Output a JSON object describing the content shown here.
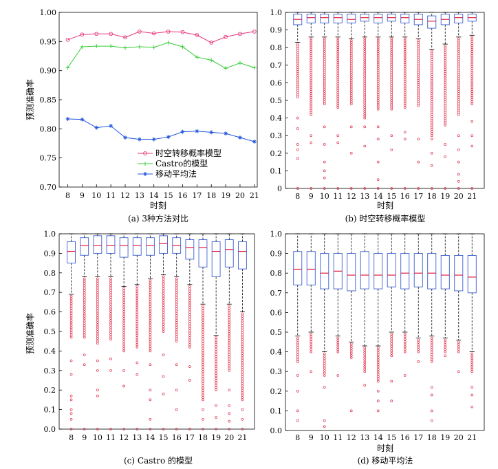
{
  "chart_data": [
    {
      "id": "a",
      "type": "line",
      "caption": "(a) 3种方法对比",
      "xlabel": "时刻",
      "ylabel": "预测准确率",
      "ylim": [
        0.7,
        1.0
      ],
      "yticks": [
        "0.70",
        "0.75",
        "0.80",
        "0.85",
        "0.90",
        "0.95",
        "1.00"
      ],
      "x": [
        8,
        9,
        10,
        11,
        12,
        13,
        14,
        15,
        16,
        17,
        18,
        19,
        20,
        21
      ],
      "x_points": [
        7.8,
        8.8,
        9.8,
        10.8,
        11.8,
        12.8,
        13.8,
        14.8,
        15.8,
        16.8,
        17.8,
        18.8,
        19.8,
        20.8
      ],
      "legend_position": "lower-center",
      "series": [
        {
          "name": "时空转移概率模型",
          "color": "#e8327a",
          "marker": "circle",
          "values": [
            0.953,
            0.962,
            0.963,
            0.963,
            0.957,
            0.967,
            0.964,
            0.967,
            0.966,
            0.961,
            0.948,
            0.958,
            0.963,
            0.967
          ]
        },
        {
          "name": "Castro的模型",
          "color": "#33cc33",
          "marker": "plus",
          "values": [
            0.905,
            0.941,
            0.942,
            0.942,
            0.939,
            0.941,
            0.94,
            0.948,
            0.941,
            0.923,
            0.918,
            0.904,
            0.913,
            0.905
          ]
        },
        {
          "name": "移动平均法",
          "color": "#2255dd",
          "marker": "star",
          "values": [
            0.817,
            0.816,
            0.802,
            0.805,
            0.785,
            0.782,
            0.782,
            0.786,
            0.795,
            0.796,
            0.794,
            0.792,
            0.785,
            0.778
          ]
        }
      ]
    },
    {
      "id": "b",
      "type": "box",
      "caption": "(b) 时空转移概率模型",
      "xlabel": "时刻",
      "ylabel": "",
      "ylim": [
        0,
        1.0
      ],
      "yticks": [
        "0",
        "0.1",
        "0.2",
        "0.3",
        "0.4",
        "0.5",
        "0.6",
        "0.7",
        "0.8",
        "0.9",
        "1.0"
      ],
      "categories": [
        "8",
        "9",
        "10",
        "11",
        "12",
        "13",
        "14",
        "15",
        "16",
        "17",
        "18",
        "19",
        "20",
        "21"
      ],
      "q1": [
        0.93,
        0.94,
        0.94,
        0.94,
        0.94,
        0.95,
        0.94,
        0.95,
        0.94,
        0.93,
        0.91,
        0.93,
        0.94,
        0.95
      ],
      "median": [
        0.96,
        0.97,
        0.97,
        0.97,
        0.96,
        0.97,
        0.97,
        0.97,
        0.97,
        0.96,
        0.95,
        0.96,
        0.97,
        0.97
      ],
      "q3": [
        0.99,
        0.99,
        0.99,
        0.99,
        0.99,
        0.99,
        0.99,
        0.99,
        0.99,
        0.99,
        0.98,
        0.99,
        0.99,
        0.99
      ],
      "wlo": [
        0.83,
        0.86,
        0.86,
        0.86,
        0.85,
        0.86,
        0.86,
        0.86,
        0.86,
        0.85,
        0.79,
        0.82,
        0.86,
        0.87
      ],
      "whi": [
        1.0,
        1.0,
        1.0,
        1.0,
        1.0,
        1.0,
        1.0,
        1.0,
        1.0,
        1.0,
        1.0,
        1.0,
        1.0,
        1.0
      ],
      "outlier_dense_lo": [
        0.52,
        0.42,
        0.48,
        0.46,
        0.48,
        0.4,
        0.45,
        0.45,
        0.46,
        0.47,
        0.3,
        0.36,
        0.42,
        0.48
      ],
      "outlier_sparse": [
        [
          0.4,
          0.34,
          0.25,
          0.22,
          0.17,
          0.0
        ],
        [
          0.3,
          0.26,
          0.0
        ],
        [
          0.35,
          0.25,
          0.15,
          0.1,
          0.06,
          0.0
        ],
        [
          0.3,
          0.26,
          0.0
        ],
        [
          0.35,
          0.2,
          0.0
        ],
        [
          0.35,
          0.24,
          0.0
        ],
        [
          0.35,
          0.28,
          0.15,
          0.05,
          0.0
        ],
        [
          0.3,
          0.22,
          0.0
        ],
        [
          0.32,
          0.28,
          0.0
        ],
        [
          0.28,
          0.15,
          0.0
        ],
        [
          0.28,
          0.2,
          0.13,
          0.0
        ],
        [
          0.25,
          0.18,
          0.0
        ],
        [
          0.3,
          0.22,
          0.15,
          0.08,
          0.04,
          0.0
        ],
        [
          0.38,
          0.3,
          0.24,
          0.0
        ]
      ]
    },
    {
      "id": "c",
      "type": "box",
      "caption": "(c) Castro 的模型",
      "xlabel": "时刻",
      "ylabel": "预测准确率",
      "ylim": [
        0,
        1.0
      ],
      "yticks": [
        "0.0",
        "0.1",
        "0.2",
        "0.3",
        "0.4",
        "0.5",
        "0.6",
        "0.7",
        "0.8",
        "0.9",
        "1.0"
      ],
      "categories": [
        "8",
        "9",
        "10",
        "11",
        "12",
        "13",
        "14",
        "15",
        "16",
        "17",
        "18",
        "19",
        "20",
        "21"
      ],
      "q1": [
        0.85,
        0.89,
        0.9,
        0.9,
        0.88,
        0.89,
        0.89,
        0.9,
        0.9,
        0.87,
        0.83,
        0.78,
        0.83,
        0.82
      ],
      "median": [
        0.91,
        0.94,
        0.94,
        0.94,
        0.94,
        0.94,
        0.94,
        0.95,
        0.94,
        0.93,
        0.93,
        0.91,
        0.92,
        0.91
      ],
      "q3": [
        0.96,
        0.98,
        0.99,
        0.99,
        0.98,
        0.98,
        0.98,
        0.99,
        0.98,
        0.97,
        0.97,
        0.96,
        0.97,
        0.96
      ],
      "wlo": [
        0.69,
        0.78,
        0.78,
        0.78,
        0.73,
        0.74,
        0.77,
        0.79,
        0.78,
        0.74,
        0.64,
        0.48,
        0.64,
        0.6
      ],
      "whi": [
        1.0,
        1.0,
        1.0,
        1.0,
        1.0,
        1.0,
        1.0,
        1.0,
        1.0,
        1.0,
        1.0,
        1.0,
        1.0,
        1.0
      ],
      "outlier_dense_lo": [
        0.47,
        0.47,
        0.44,
        0.46,
        0.4,
        0.42,
        0.4,
        0.5,
        0.45,
        0.42,
        0.15,
        0.2,
        0.3,
        0.15
      ],
      "outlier_sparse": [
        [
          0.35,
          0.28,
          0.17,
          0.15,
          0.1,
          0.08,
          0.05,
          0.0
        ],
        [
          0.38,
          0.33,
          0.0
        ],
        [
          0.35,
          0.3,
          0.2,
          0.17,
          0.0
        ],
        [
          0.36,
          0.3,
          0.0
        ],
        [
          0.3,
          0.22,
          0.0
        ],
        [
          0.34,
          0.28,
          0.0
        ],
        [
          0.33,
          0.2,
          0.15,
          0.05,
          0.0
        ],
        [
          0.38,
          0.27,
          0.18,
          0.0
        ],
        [
          0.33,
          0.2,
          0.1,
          0.0
        ],
        [
          0.32,
          0.25,
          0.0
        ],
        [
          0.1,
          0.05,
          0.0
        ],
        [
          0.12,
          0.06,
          0.0
        ],
        [
          0.2,
          0.12,
          0.08,
          0.04,
          0.0
        ],
        [
          0.1,
          0.05,
          0.0
        ]
      ]
    },
    {
      "id": "d",
      "type": "box",
      "caption": "(d) 移动平均法",
      "xlabel": "时刻",
      "ylabel": "",
      "ylim": [
        0,
        1.0
      ],
      "yticks": [
        "0.0",
        "0.1",
        "0.2",
        "0.3",
        "0.4",
        "0.5",
        "0.6",
        "0.7",
        "0.8",
        "0.9",
        "1.0"
      ],
      "categories": [
        "8",
        "9",
        "10",
        "11",
        "12",
        "13",
        "14",
        "15",
        "16",
        "17",
        "18",
        "19",
        "20",
        "21"
      ],
      "q1": [
        0.74,
        0.74,
        0.72,
        0.72,
        0.71,
        0.72,
        0.72,
        0.73,
        0.72,
        0.73,
        0.72,
        0.72,
        0.71,
        0.7
      ],
      "median": [
        0.82,
        0.82,
        0.8,
        0.81,
        0.79,
        0.79,
        0.79,
        0.79,
        0.8,
        0.8,
        0.8,
        0.79,
        0.79,
        0.78
      ],
      "q3": [
        0.91,
        0.91,
        0.9,
        0.9,
        0.9,
        0.91,
        0.9,
        0.9,
        0.9,
        0.9,
        0.9,
        0.89,
        0.89,
        0.89
      ],
      "wlo": [
        0.48,
        0.5,
        0.4,
        0.48,
        0.45,
        0.43,
        0.43,
        0.5,
        0.5,
        0.47,
        0.48,
        0.47,
        0.46,
        0.4
      ],
      "whi": [
        1.0,
        1.0,
        1.0,
        1.0,
        1.0,
        1.0,
        1.0,
        1.0,
        1.0,
        1.0,
        1.0,
        1.0,
        1.0,
        1.0
      ],
      "outlier_dense_lo": [
        0.35,
        0.4,
        0.28,
        0.4,
        0.37,
        0.3,
        0.25,
        0.38,
        0.4,
        0.4,
        0.35,
        0.4,
        0.4,
        0.3
      ],
      "outlier_sparse": [
        [
          0.28,
          0.2,
          0.1,
          0.05
        ],
        [
          0.3
        ],
        [
          0.22,
          0.05,
          0.02
        ],
        [
          0.28
        ],
        [
          0.1
        ],
        [
          0.23
        ],
        [
          0.2,
          0.15,
          0.1
        ],
        [
          0.25,
          0.15
        ],
        [
          0.28
        ],
        [
          0.35
        ],
        [
          0.22,
          0.18,
          0.1,
          0.05
        ],
        [
          0.38
        ],
        [
          0.3
        ],
        [
          0.22,
          0.18,
          0.12
        ]
      ]
    }
  ]
}
